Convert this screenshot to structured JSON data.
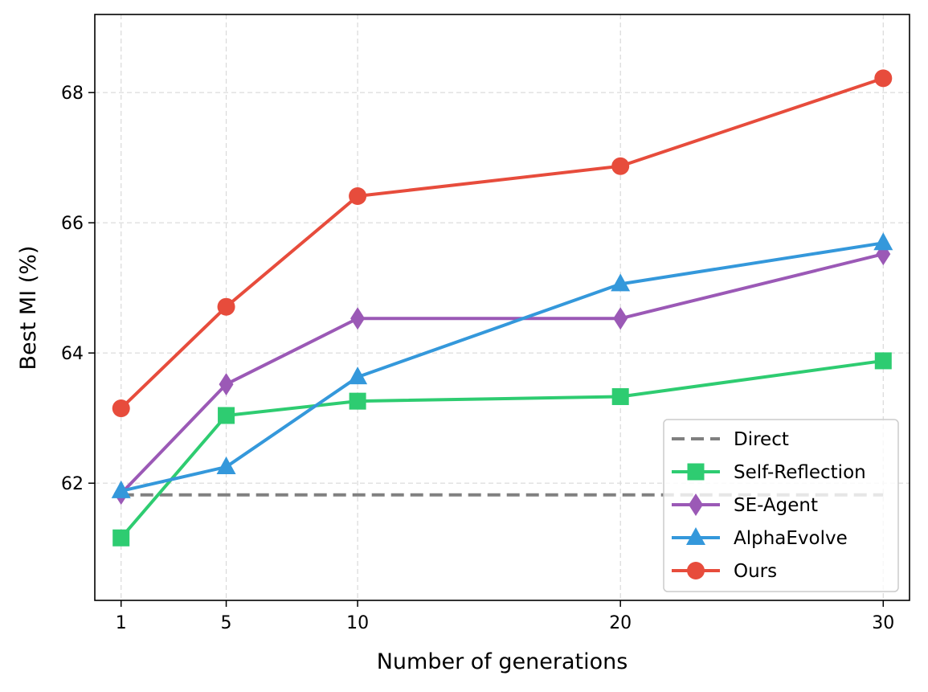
{
  "chart_data": {
    "type": "line",
    "xlabel": "Number of generations",
    "ylabel": "Best MI (%)",
    "x": [
      1,
      5,
      10,
      20,
      30
    ],
    "xticks": [
      1,
      5,
      10,
      20,
      30
    ],
    "yticks": [
      62,
      64,
      66,
      68
    ],
    "xlim": [
      0,
      31
    ],
    "ylim": [
      60.2,
      69.2
    ],
    "grid": true,
    "legend_position": "lower-right",
    "series": [
      {
        "name": "Direct",
        "color": "#808080",
        "style": "dashed",
        "marker": "none",
        "values": [
          61.82,
          61.82,
          61.82,
          61.82,
          61.82
        ]
      },
      {
        "name": "Self-Reflection",
        "color": "#2ecc71",
        "style": "solid",
        "marker": "square",
        "values": [
          61.16,
          63.04,
          63.26,
          63.33,
          63.88
        ]
      },
      {
        "name": "SE-Agent",
        "color": "#9b59b6",
        "style": "solid",
        "marker": "diamond",
        "values": [
          61.84,
          63.52,
          64.53,
          64.53,
          65.52
        ]
      },
      {
        "name": "AlphaEvolve",
        "color": "#3498db",
        "style": "solid",
        "marker": "triangle",
        "values": [
          61.88,
          62.25,
          63.63,
          65.06,
          65.69
        ]
      },
      {
        "name": "Ours",
        "color": "#e74c3c",
        "style": "solid",
        "marker": "circle",
        "values": [
          63.15,
          64.71,
          66.41,
          66.87,
          68.22
        ]
      }
    ]
  }
}
